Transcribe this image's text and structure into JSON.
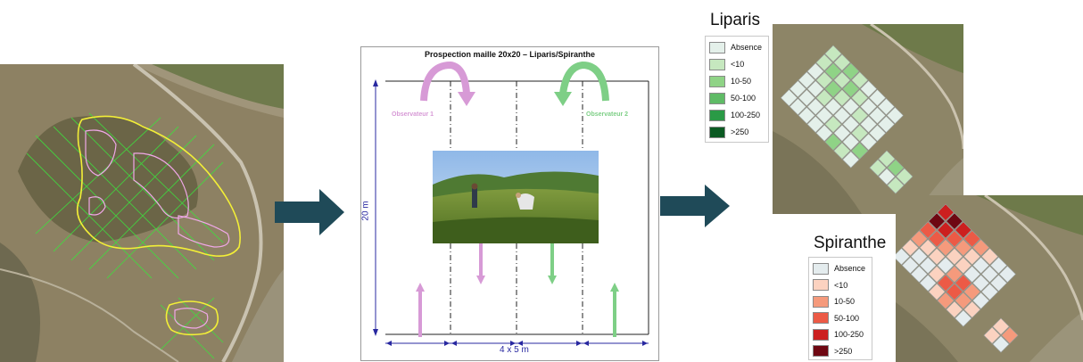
{
  "diagram": {
    "title": "Prospection maille 20x20 – Liparis/Spiranthe",
    "observer_1": "Observateur 1",
    "observer_2": "Observateur 2",
    "height_label": "20 m",
    "width_label": "4 x 5 m"
  },
  "legends": {
    "liparis": {
      "title": "Liparis",
      "items": [
        {
          "label": "Absence",
          "color": "#e4f0ea"
        },
        {
          "label": "<10",
          "color": "#c6e8bf"
        },
        {
          "label": "10-50",
          "color": "#8fd386"
        },
        {
          "label": "50-100",
          "color": "#5fbb66"
        },
        {
          "label": "100-250",
          "color": "#2a9a46"
        },
        {
          "label": ">250",
          "color": "#0b5a22"
        }
      ]
    },
    "spiranthe": {
      "title": "Spiranthe",
      "items": [
        {
          "label": "Absence",
          "color": "#e4ecee"
        },
        {
          "label": "<10",
          "color": "#fbd2c0"
        },
        {
          "label": "10-50",
          "color": "#f59a7c"
        },
        {
          "label": "50-100",
          "color": "#ec5a46"
        },
        {
          "label": "100-250",
          "color": "#cc1f1f"
        },
        {
          "label": ">250",
          "color": "#6e0712"
        }
      ]
    }
  },
  "colors": {
    "arrow": "#1f4a58",
    "observer_1": "#d79ad6",
    "observer_2": "#7ecf86",
    "dimension": "#2828a0"
  }
}
